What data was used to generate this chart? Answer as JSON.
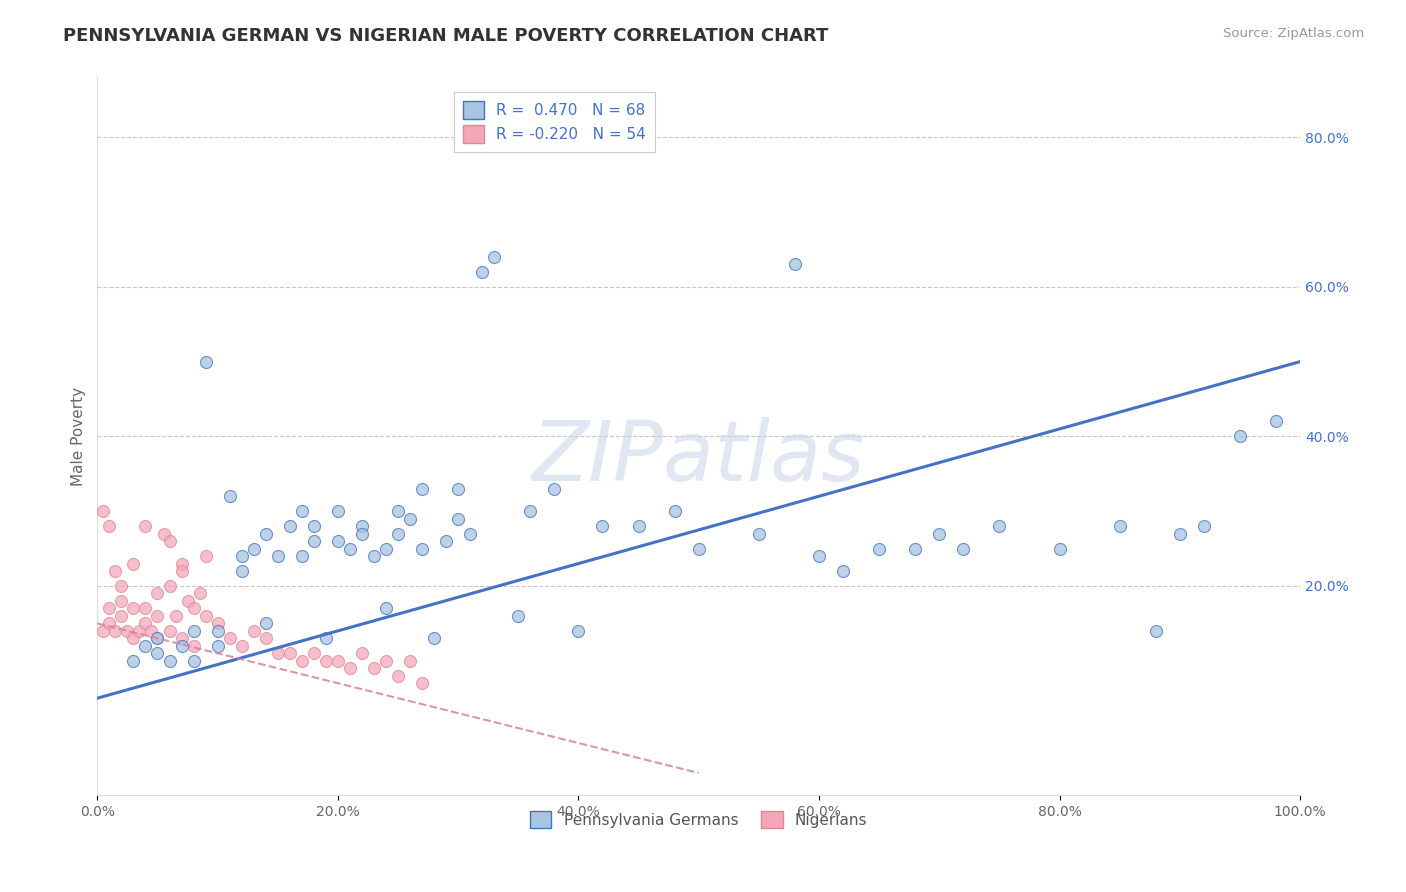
{
  "title": "PENNSYLVANIA GERMAN VS NIGERIAN MALE POVERTY CORRELATION CHART",
  "source": "Source: ZipAtlas.com",
  "ylabel": "Male Poverty",
  "watermark": "ZIPatlas",
  "legend_pa": "Pennsylvania Germans",
  "legend_ni": "Nigerians",
  "r_pa": 0.47,
  "n_pa": 68,
  "r_ni": -0.22,
  "n_ni": 54,
  "xlim": [
    0.0,
    1.0
  ],
  "ylim": [
    -0.08,
    0.88
  ],
  "xticks": [
    0.0,
    0.2,
    0.4,
    0.6,
    0.8,
    1.0
  ],
  "yticks_right": [
    0.2,
    0.4,
    0.6,
    0.8
  ],
  "xticklabels": [
    "0.0%",
    "20.0%",
    "40.0%",
    "60.0%",
    "80.0%",
    "100.0%"
  ],
  "yticklabels_right": [
    "20.0%",
    "40.0%",
    "60.0%",
    "80.0%"
  ],
  "color_pa": "#a8c4e0",
  "color_ni": "#f4a7b9",
  "line_pa": "#4472c4",
  "line_ni": "#d4849a",
  "background": "#ffffff",
  "grid_color": "#c8c8c8",
  "pa_line_x0": 0.0,
  "pa_line_x1": 1.0,
  "pa_line_y0": 0.05,
  "pa_line_y1": 0.5,
  "ni_line_x0": 0.0,
  "ni_line_x1": 0.5,
  "ni_line_y0": 0.15,
  "ni_line_y1": -0.05,
  "pa_x": [
    0.03,
    0.04,
    0.05,
    0.05,
    0.06,
    0.07,
    0.08,
    0.08,
    0.09,
    0.1,
    0.1,
    0.11,
    0.12,
    0.12,
    0.13,
    0.14,
    0.14,
    0.15,
    0.16,
    0.17,
    0.17,
    0.18,
    0.18,
    0.19,
    0.2,
    0.2,
    0.21,
    0.22,
    0.22,
    0.23,
    0.24,
    0.24,
    0.25,
    0.25,
    0.26,
    0.27,
    0.27,
    0.28,
    0.29,
    0.3,
    0.3,
    0.31,
    0.32,
    0.33,
    0.35,
    0.36,
    0.38,
    0.4,
    0.42,
    0.45,
    0.48,
    0.5,
    0.55,
    0.58,
    0.6,
    0.62,
    0.65,
    0.68,
    0.7,
    0.72,
    0.75,
    0.8,
    0.85,
    0.88,
    0.9,
    0.92,
    0.95,
    0.98
  ],
  "pa_y": [
    0.1,
    0.12,
    0.11,
    0.13,
    0.1,
    0.12,
    0.1,
    0.14,
    0.5,
    0.12,
    0.14,
    0.32,
    0.22,
    0.24,
    0.25,
    0.27,
    0.15,
    0.24,
    0.28,
    0.24,
    0.3,
    0.26,
    0.28,
    0.13,
    0.3,
    0.26,
    0.25,
    0.28,
    0.27,
    0.24,
    0.17,
    0.25,
    0.27,
    0.3,
    0.29,
    0.25,
    0.33,
    0.13,
    0.26,
    0.33,
    0.29,
    0.27,
    0.62,
    0.64,
    0.16,
    0.3,
    0.33,
    0.14,
    0.28,
    0.28,
    0.3,
    0.25,
    0.27,
    0.63,
    0.24,
    0.22,
    0.25,
    0.25,
    0.27,
    0.25,
    0.28,
    0.25,
    0.28,
    0.14,
    0.27,
    0.28,
    0.4,
    0.42
  ],
  "ni_x": [
    0.005,
    0.01,
    0.01,
    0.015,
    0.02,
    0.02,
    0.02,
    0.025,
    0.03,
    0.03,
    0.03,
    0.035,
    0.04,
    0.04,
    0.04,
    0.045,
    0.05,
    0.05,
    0.05,
    0.055,
    0.06,
    0.06,
    0.06,
    0.065,
    0.07,
    0.07,
    0.075,
    0.08,
    0.085,
    0.09,
    0.09,
    0.1,
    0.11,
    0.12,
    0.13,
    0.14,
    0.15,
    0.16,
    0.17,
    0.18,
    0.19,
    0.2,
    0.21,
    0.22,
    0.23,
    0.24,
    0.25,
    0.26,
    0.27,
    0.005,
    0.01,
    0.015,
    0.07,
    0.08
  ],
  "ni_y": [
    0.14,
    0.15,
    0.17,
    0.14,
    0.18,
    0.16,
    0.2,
    0.14,
    0.13,
    0.17,
    0.23,
    0.14,
    0.15,
    0.17,
    0.28,
    0.14,
    0.13,
    0.16,
    0.19,
    0.27,
    0.14,
    0.2,
    0.26,
    0.16,
    0.13,
    0.23,
    0.18,
    0.17,
    0.19,
    0.16,
    0.24,
    0.15,
    0.13,
    0.12,
    0.14,
    0.13,
    0.11,
    0.11,
    0.1,
    0.11,
    0.1,
    0.1,
    0.09,
    0.11,
    0.09,
    0.1,
    0.08,
    0.1,
    0.07,
    0.3,
    0.28,
    0.22,
    0.22,
    0.12
  ]
}
